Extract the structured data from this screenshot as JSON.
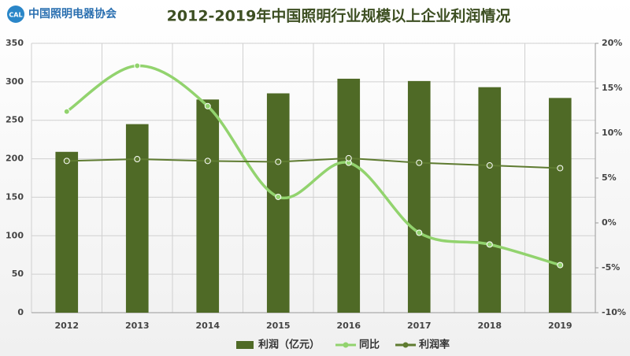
{
  "chart_data": {
    "type": "bar",
    "title": "2012-2019年中国照明行业规模以上企业利润情况",
    "logo_mark": "CAL",
    "logo_text": "中国照明电器协会",
    "categories": [
      "2012",
      "2013",
      "2014",
      "2015",
      "2016",
      "2017",
      "2018",
      "2019"
    ],
    "series": [
      {
        "name": "利润（亿元）",
        "type": "bar",
        "color": "#4f6a26",
        "values": [
          209,
          245,
          277,
          285,
          304,
          301,
          293,
          279
        ]
      },
      {
        "name": "同比",
        "type": "line",
        "smooth": true,
        "color": "#92d36e",
        "axis": "y2",
        "values": [
          12.4,
          17.5,
          13.0,
          2.9,
          6.7,
          -1.1,
          -2.4,
          -4.7
        ]
      },
      {
        "name": "利润率",
        "type": "line",
        "smooth": false,
        "color": "#5e7b30",
        "axis": "y2",
        "values": [
          6.9,
          7.1,
          6.9,
          6.8,
          7.2,
          6.7,
          6.4,
          6.1
        ]
      }
    ],
    "ylim": [
      0,
      350
    ],
    "yticks": [
      0,
      50,
      100,
      150,
      200,
      250,
      300,
      350
    ],
    "y2lim": [
      -10,
      20
    ],
    "y2ticks": [
      {
        "value": -10,
        "label": "-10%"
      },
      {
        "value": -5,
        "label": "-5%"
      },
      {
        "value": 0,
        "label": "0%"
      },
      {
        "value": 5,
        "label": "5%"
      },
      {
        "value": 10,
        "label": "10%"
      },
      {
        "value": 15,
        "label": "15%"
      },
      {
        "value": 20,
        "label": "20%"
      }
    ],
    "grid": true,
    "legend": "bottom"
  }
}
